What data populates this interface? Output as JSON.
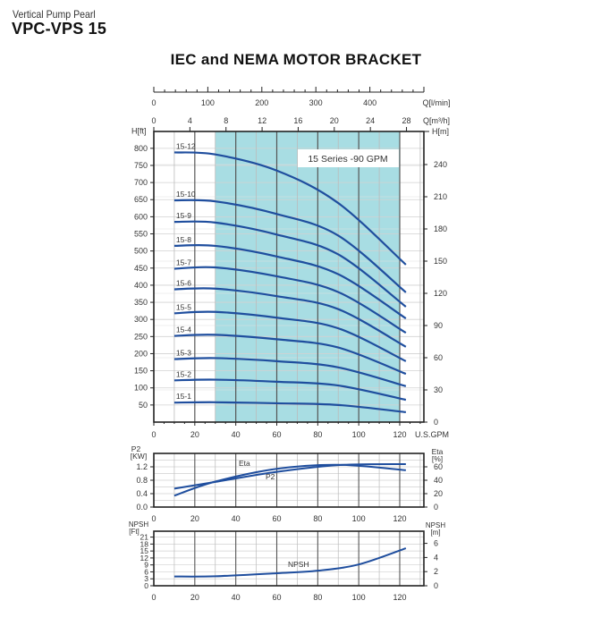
{
  "header": {
    "subtitle": "Vertical Pump Pearl",
    "model": "VPC-VPS 15",
    "title": "IEC and NEMA MOTOR BRACKET"
  },
  "colors": {
    "curve": "#1f4e9e",
    "shaded_region": "#a8dde3",
    "grid": "#cccccc",
    "axis": "#222222"
  },
  "chart_data": [
    {
      "type": "line",
      "title": "15 Series -90 GPM",
      "xlabel": "U.S.GPM",
      "ylabel": "H[ft]",
      "ylabel_right": "H[m]",
      "top_axis_1_label": "Q[l/min]",
      "top_axis_1_ticks": [
        0,
        100,
        200,
        300,
        400
      ],
      "top_axis_2_label": "Q[m³/h]",
      "top_axis_2_ticks": [
        0,
        4,
        8,
        12,
        16,
        20,
        24,
        28
      ],
      "x_ticks": [
        0,
        20,
        40,
        60,
        80,
        100,
        120
      ],
      "y_ticks": [
        50,
        100,
        150,
        200,
        250,
        300,
        350,
        400,
        450,
        500,
        550,
        600,
        650,
        700,
        750,
        800
      ],
      "y_right_ticks": [
        0,
        30,
        60,
        90,
        120,
        150,
        180,
        210,
        240
      ],
      "xlim": [
        0,
        130
      ],
      "ylim": [
        0,
        850
      ],
      "grid": true,
      "shaded_x_range": [
        30,
        120
      ],
      "x": [
        10,
        30,
        60,
        90,
        123
      ],
      "series": [
        {
          "name": "15-12",
          "values": [
            788,
            782,
            735,
            640,
            460
          ]
        },
        {
          "name": "15-10",
          "values": [
            648,
            645,
            608,
            545,
            379
          ]
        },
        {
          "name": "15-9",
          "values": [
            585,
            583,
            548,
            490,
            337
          ]
        },
        {
          "name": "15-8",
          "values": [
            515,
            515,
            484,
            432,
            303
          ]
        },
        {
          "name": "15-7",
          "values": [
            448,
            452,
            426,
            380,
            261
          ]
        },
        {
          "name": "15-6",
          "values": [
            388,
            390,
            368,
            330,
            220
          ]
        },
        {
          "name": "15-5",
          "values": [
            318,
            322,
            305,
            274,
            178
          ]
        },
        {
          "name": "15-4",
          "values": [
            252,
            255,
            242,
            218,
            141
          ]
        },
        {
          "name": "15-3",
          "values": [
            184,
            187,
            178,
            160,
            105
          ]
        },
        {
          "name": "15-2",
          "values": [
            122,
            124,
            118,
            107,
            65
          ]
        },
        {
          "name": "15-1",
          "values": [
            57,
            58,
            55,
            50,
            29
          ]
        }
      ]
    },
    {
      "type": "line",
      "title": "",
      "xlabel": "",
      "ylabel": "P2 [KW]",
      "ylabel_right": "Eta [%]",
      "x_ticks": [
        0,
        20,
        40,
        60,
        80,
        100,
        120
      ],
      "y_ticks": [
        0.0,
        0.4,
        0.8,
        1.2
      ],
      "y_right_ticks": [
        0,
        20,
        40,
        60
      ],
      "xlim": [
        0,
        130
      ],
      "ylim": [
        0,
        1.6
      ],
      "grid": true,
      "x": [
        10,
        30,
        60,
        90,
        123
      ],
      "series": [
        {
          "name": "Eta",
          "axis": "right",
          "values": [
            17,
            38,
            57,
            63,
            55
          ]
        },
        {
          "name": "P2",
          "axis": "left",
          "values": [
            0.55,
            0.75,
            1.05,
            1.25,
            1.28
          ]
        }
      ]
    },
    {
      "type": "line",
      "title": "",
      "xlabel": "",
      "ylabel": "NPSH [Ft]",
      "ylabel_right": "NPSH [m]",
      "x_ticks": [
        0,
        20,
        40,
        60,
        80,
        100,
        120
      ],
      "y_ticks": [
        0,
        3,
        6,
        9,
        12,
        15,
        18,
        21
      ],
      "y_right_ticks": [
        0,
        2,
        4,
        6
      ],
      "xlim": [
        0,
        130
      ],
      "ylim": [
        0,
        24
      ],
      "grid": true,
      "x": [
        10,
        30,
        60,
        80,
        100,
        123
      ],
      "series": [
        {
          "name": "NPSH",
          "values": [
            4,
            4.1,
            5.4,
            6.5,
            9.2,
            16.2
          ]
        }
      ]
    }
  ]
}
